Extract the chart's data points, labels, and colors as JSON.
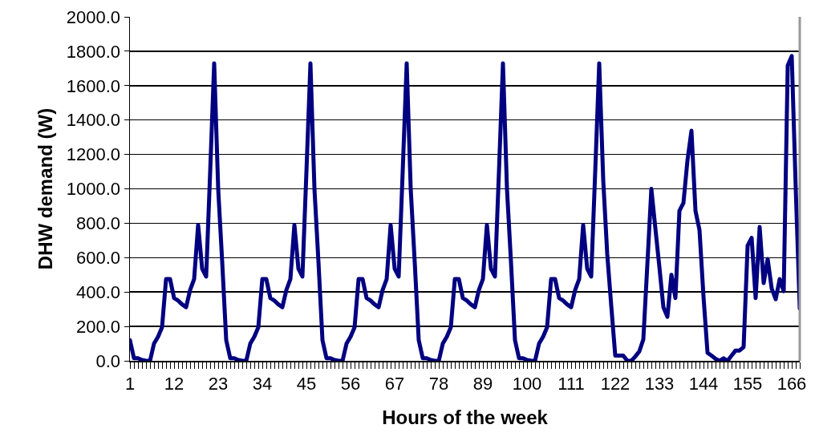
{
  "chart_data": {
    "type": "line",
    "xlabel": "Hours of the week",
    "ylabel": "DHW demand (W)",
    "categories": [
      "1",
      null,
      null,
      null,
      null,
      null,
      null,
      null,
      null,
      null,
      null,
      "12",
      null,
      null,
      null,
      null,
      null,
      null,
      null,
      null,
      null,
      null,
      "23",
      null,
      null,
      null,
      null,
      null,
      null,
      null,
      null,
      null,
      null,
      "34",
      null,
      null,
      null,
      null,
      null,
      null,
      null,
      null,
      null,
      null,
      "45",
      null,
      null,
      null,
      null,
      null,
      null,
      null,
      null,
      null,
      null,
      "56",
      null,
      null,
      null,
      null,
      null,
      null,
      null,
      null,
      null,
      null,
      "67",
      null,
      null,
      null,
      null,
      null,
      null,
      null,
      null,
      null,
      null,
      "78",
      null,
      null,
      null,
      null,
      null,
      null,
      null,
      null,
      null,
      null,
      "89",
      null,
      null,
      null,
      null,
      null,
      null,
      null,
      null,
      null,
      null,
      "100",
      null,
      null,
      null,
      null,
      null,
      null,
      null,
      null,
      null,
      null,
      "111",
      null,
      null,
      null,
      null,
      null,
      null,
      null,
      null,
      null,
      null,
      "122",
      null,
      null,
      null,
      null,
      null,
      null,
      null,
      null,
      null,
      null,
      "133",
      null,
      null,
      null,
      null,
      null,
      null,
      null,
      null,
      null,
      null,
      "144",
      null,
      null,
      null,
      null,
      null,
      null,
      null,
      null,
      null,
      null,
      "155",
      null,
      null,
      null,
      null,
      null,
      null,
      null,
      null,
      null,
      null,
      "166",
      null,
      null
    ],
    "series": [
      {
        "color": "#000080",
        "values": [
          120,
          15,
          15,
          5,
          0,
          0,
          100,
          140,
          195,
          475,
          475,
          365,
          350,
          328,
          312,
          412,
          475,
          790,
          536,
          490,
          1100,
          1730,
          1000,
          575,
          120,
          15,
          15,
          5,
          0,
          0,
          100,
          140,
          195,
          475,
          475,
          365,
          350,
          328,
          312,
          412,
          475,
          790,
          536,
          490,
          1100,
          1730,
          1000,
          575,
          120,
          15,
          15,
          5,
          0,
          0,
          100,
          140,
          195,
          475,
          475,
          365,
          350,
          328,
          312,
          412,
          475,
          790,
          536,
          490,
          1100,
          1730,
          1000,
          575,
          120,
          15,
          15,
          5,
          0,
          0,
          100,
          140,
          195,
          475,
          475,
          365,
          350,
          328,
          312,
          412,
          475,
          790,
          536,
          490,
          1100,
          1730,
          1000,
          575,
          120,
          15,
          15,
          5,
          0,
          0,
          100,
          140,
          195,
          475,
          475,
          365,
          350,
          328,
          312,
          412,
          475,
          790,
          536,
          490,
          1100,
          1730,
          1050,
          620,
          320,
          30,
          30,
          30,
          0,
          0,
          25,
          55,
          125,
          560,
          1000,
          770,
          545,
          311,
          256,
          500,
          365,
          872,
          918,
          1165,
          1338,
          872,
          761,
          373,
          47,
          30,
          12,
          0,
          15,
          0,
          30,
          60,
          60,
          80,
          670,
          715,
          365,
          778,
          452,
          592,
          420,
          358,
          475,
          405,
          1717,
          1772,
          1000,
          303
        ]
      }
    ],
    "ylim": [
      0,
      2000
    ],
    "yticks": [
      {
        "value": 0,
        "label": "0.0"
      },
      {
        "value": 200,
        "label": "200.0"
      },
      {
        "value": 400,
        "label": "400.0"
      },
      {
        "value": 600,
        "label": "600.0"
      },
      {
        "value": 800,
        "label": "800.0"
      },
      {
        "value": 1000,
        "label": "1000.0"
      },
      {
        "value": 1200,
        "label": "1200.0"
      },
      {
        "value": 1400,
        "label": "1400.0"
      },
      {
        "value": 1600,
        "label": "1600.0"
      },
      {
        "value": 1800,
        "label": "1800.0"
      },
      {
        "value": 2000,
        "label": "2000.0"
      }
    ],
    "grid": "y",
    "marker": "none",
    "line_style": "solid"
  }
}
